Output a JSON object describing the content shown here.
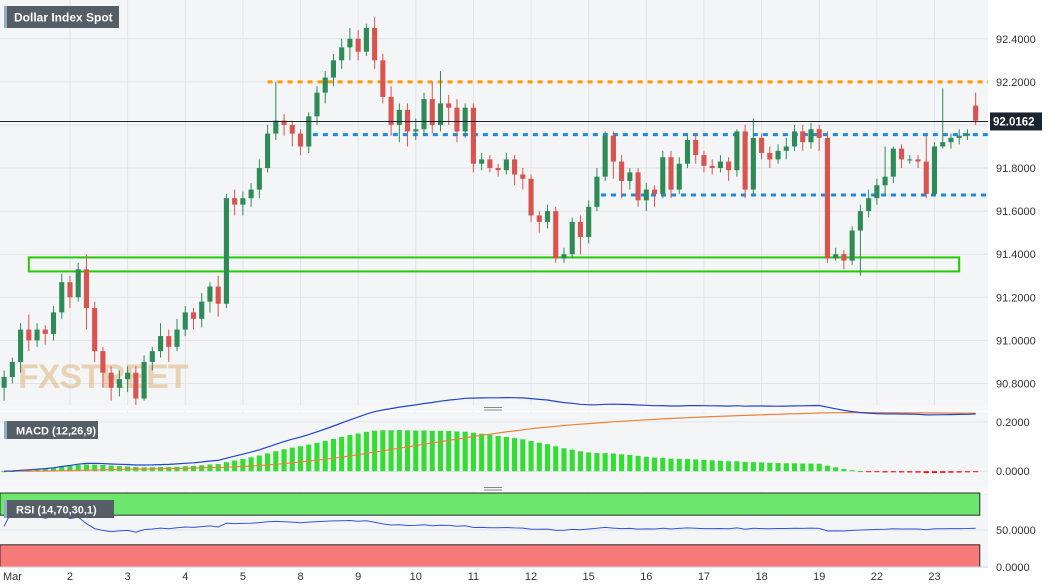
{
  "chart_data": {
    "type": "candlestick",
    "title": "Dollar Index Spot",
    "watermark": "FXSTREET",
    "last_price": {
      "label": "92.0162",
      "value": 92.0162
    },
    "x_axis": {
      "ticks": [
        {
          "label": "Mar",
          "x": 1
        },
        {
          "label": "2",
          "x": 8.5
        },
        {
          "label": "3",
          "x": 15.5
        },
        {
          "label": "4",
          "x": 22.5
        },
        {
          "label": "5",
          "x": 29.5
        },
        {
          "label": "8",
          "x": 36.5
        },
        {
          "label": "9",
          "x": 43.5
        },
        {
          "label": "10",
          "x": 50.5
        },
        {
          "label": "11",
          "x": 57.5
        },
        {
          "label": "12",
          "x": 64.5
        },
        {
          "label": "15",
          "x": 71.5
        },
        {
          "label": "16",
          "x": 78.5
        },
        {
          "label": "17",
          "x": 85.5
        },
        {
          "label": "18",
          "x": 92.5
        },
        {
          "label": "19",
          "x": 99.5
        },
        {
          "label": "22",
          "x": 106.5
        },
        {
          "label": "23",
          "x": 113.5
        }
      ],
      "range": [
        0,
        120
      ]
    },
    "price_axis": {
      "ylim": [
        90.7,
        92.58
      ],
      "ticks": [
        {
          "label": "92.4000",
          "value": 92.4
        },
        {
          "label": "92.2000",
          "value": 92.2
        },
        {
          "label": "92.0000",
          "value": 92.0
        },
        {
          "label": "91.8000",
          "value": 91.8
        },
        {
          "label": "91.6000",
          "value": 91.6
        },
        {
          "label": "91.4000",
          "value": 91.4
        },
        {
          "label": "91.2000",
          "value": 91.2
        },
        {
          "label": "91.0000",
          "value": 91.0
        },
        {
          "label": "90.8000",
          "value": 90.8
        }
      ]
    },
    "candles_up_color": "#2e8b57",
    "candles_down_color": "#d9534f",
    "candles": [
      [
        90.78,
        90.83,
        90.72,
        90.86
      ],
      [
        90.83,
        90.9,
        90.8,
        90.92
      ],
      [
        90.9,
        91.05,
        90.85,
        91.08
      ],
      [
        91.05,
        91.0,
        90.95,
        91.12
      ],
      [
        91.0,
        91.05,
        90.97,
        91.08
      ],
      [
        91.05,
        91.03,
        90.98,
        91.07
      ],
      [
        91.03,
        91.13,
        91.0,
        91.16
      ],
      [
        91.13,
        91.27,
        91.1,
        91.31
      ],
      [
        91.27,
        91.2,
        91.15,
        91.3
      ],
      [
        91.2,
        91.33,
        91.18,
        91.36
      ],
      [
        91.33,
        91.15,
        91.05,
        91.4
      ],
      [
        91.15,
        90.95,
        90.9,
        91.18
      ],
      [
        90.95,
        90.85,
        90.78,
        90.97
      ],
      [
        90.85,
        90.78,
        90.72,
        90.88
      ],
      [
        90.78,
        90.82,
        90.74,
        90.86
      ],
      [
        90.82,
        90.85,
        90.76,
        90.88
      ],
      [
        90.85,
        90.73,
        90.7,
        90.88
      ],
      [
        90.73,
        90.9,
        90.72,
        90.93
      ],
      [
        90.9,
        90.95,
        90.86,
        90.97
      ],
      [
        90.95,
        91.02,
        90.92,
        91.08
      ],
      [
        91.02,
        90.97,
        90.9,
        91.05
      ],
      [
        90.97,
        91.05,
        90.95,
        91.1
      ],
      [
        91.05,
        91.13,
        91.02,
        91.16
      ],
      [
        91.13,
        91.1,
        91.05,
        91.15
      ],
      [
        91.1,
        91.18,
        91.06,
        91.22
      ],
      [
        91.18,
        91.25,
        91.13,
        91.27
      ],
      [
        91.25,
        91.17,
        91.11,
        91.3
      ],
      [
        91.17,
        91.66,
        91.15,
        91.68
      ],
      [
        91.66,
        91.63,
        91.58,
        91.7
      ],
      [
        91.63,
        91.66,
        91.58,
        91.69
      ],
      [
        91.66,
        91.7,
        91.62,
        91.73
      ],
      [
        91.7,
        91.8,
        91.66,
        91.84
      ],
      [
        91.8,
        91.96,
        91.78,
        92.0
      ],
      [
        91.96,
        92.02,
        91.93,
        92.2
      ],
      [
        92.02,
        92.0,
        91.95,
        92.05
      ],
      [
        92.0,
        91.96,
        91.9,
        92.02
      ],
      [
        91.96,
        91.9,
        91.86,
        91.98
      ],
      [
        91.9,
        92.04,
        91.87,
        92.06
      ],
      [
        92.04,
        92.15,
        92.0,
        92.18
      ],
      [
        92.15,
        92.22,
        92.1,
        92.25
      ],
      [
        92.22,
        92.3,
        92.18,
        92.33
      ],
      [
        92.3,
        92.36,
        92.26,
        92.4
      ],
      [
        92.36,
        92.4,
        92.3,
        92.45
      ],
      [
        92.4,
        92.34,
        92.3,
        92.44
      ],
      [
        92.34,
        92.45,
        92.32,
        92.47
      ],
      [
        92.45,
        92.3,
        92.26,
        92.5
      ],
      [
        92.3,
        92.13,
        92.1,
        92.33
      ],
      [
        92.13,
        92.0,
        91.95,
        92.18
      ],
      [
        92.0,
        92.07,
        91.92,
        92.1
      ],
      [
        92.07,
        91.97,
        91.9,
        92.1
      ],
      [
        91.97,
        91.98,
        91.93,
        92.03
      ],
      [
        91.98,
        92.12,
        91.95,
        92.15
      ],
      [
        92.12,
        92.0,
        91.96,
        92.2
      ],
      [
        92.0,
        92.1,
        91.97,
        92.25
      ],
      [
        92.1,
        92.08,
        92.0,
        92.14
      ],
      [
        92.08,
        91.97,
        91.92,
        92.12
      ],
      [
        91.97,
        92.08,
        91.94,
        92.1
      ],
      [
        92.08,
        91.82,
        91.78,
        92.1
      ],
      [
        91.82,
        91.84,
        91.79,
        91.87
      ],
      [
        91.84,
        91.8,
        91.78,
        91.86
      ],
      [
        91.8,
        91.79,
        91.76,
        91.82
      ],
      [
        91.79,
        91.84,
        91.77,
        91.87
      ],
      [
        91.84,
        91.77,
        91.72,
        91.86
      ],
      [
        91.77,
        91.75,
        91.7,
        91.8
      ],
      [
        91.75,
        91.58,
        91.55,
        91.77
      ],
      [
        91.58,
        91.55,
        91.5,
        91.6
      ],
      [
        91.55,
        91.6,
        91.52,
        91.63
      ],
      [
        91.6,
        91.38,
        91.36,
        91.62
      ],
      [
        91.38,
        91.4,
        91.36,
        91.43
      ],
      [
        91.4,
        91.55,
        91.38,
        91.57
      ],
      [
        91.55,
        91.48,
        91.4,
        91.58
      ],
      [
        91.48,
        91.62,
        91.45,
        91.65
      ],
      [
        91.62,
        91.76,
        91.6,
        91.8
      ],
      [
        91.76,
        91.95,
        91.74,
        91.97
      ],
      [
        91.95,
        91.83,
        91.75,
        91.97
      ],
      [
        91.83,
        91.74,
        91.66,
        91.86
      ],
      [
        91.74,
        91.78,
        91.7,
        91.8
      ],
      [
        91.78,
        91.65,
        91.62,
        91.8
      ],
      [
        91.65,
        91.7,
        91.6,
        91.73
      ],
      [
        91.7,
        91.68,
        91.62,
        91.72
      ],
      [
        91.68,
        91.85,
        91.66,
        91.88
      ],
      [
        91.85,
        91.7,
        91.66,
        91.88
      ],
      [
        91.7,
        91.82,
        91.68,
        91.85
      ],
      [
        91.82,
        91.93,
        91.8,
        91.96
      ],
      [
        91.93,
        91.86,
        91.82,
        91.96
      ],
      [
        91.86,
        91.81,
        91.78,
        91.88
      ],
      [
        91.81,
        91.8,
        91.77,
        91.84
      ],
      [
        91.8,
        91.83,
        91.78,
        91.86
      ],
      [
        91.83,
        91.79,
        91.74,
        91.85
      ],
      [
        91.79,
        91.97,
        91.76,
        91.98
      ],
      [
        91.97,
        91.7,
        91.66,
        92.0
      ],
      [
        91.7,
        91.94,
        91.68,
        92.03
      ],
      [
        91.94,
        91.87,
        91.84,
        91.96
      ],
      [
        91.87,
        91.84,
        91.8,
        91.9
      ],
      [
        91.84,
        91.88,
        91.82,
        91.91
      ],
      [
        91.88,
        91.9,
        91.84,
        91.94
      ],
      [
        91.9,
        91.97,
        91.88,
        92.0
      ],
      [
        91.97,
        91.92,
        91.88,
        92.0
      ],
      [
        91.92,
        91.98,
        91.89,
        92.01
      ],
      [
        91.98,
        91.94,
        91.88,
        92.0
      ],
      [
        91.94,
        91.38,
        91.36,
        91.97
      ],
      [
        91.38,
        91.4,
        91.37,
        91.43
      ],
      [
        91.4,
        91.37,
        91.33,
        91.42
      ],
      [
        91.37,
        91.51,
        91.35,
        91.53
      ],
      [
        91.51,
        91.6,
        91.3,
        91.63
      ],
      [
        91.6,
        91.66,
        91.57,
        91.7
      ],
      [
        91.66,
        91.72,
        91.63,
        91.75
      ],
      [
        91.72,
        91.76,
        91.68,
        91.9
      ],
      [
        91.76,
        91.89,
        91.73,
        91.9
      ],
      [
        91.89,
        91.84,
        91.8,
        91.91
      ],
      [
        91.84,
        91.84,
        91.82,
        91.86
      ],
      [
        91.84,
        91.83,
        91.8,
        91.86
      ],
      [
        91.83,
        91.68,
        91.66,
        91.95
      ],
      [
        91.68,
        91.9,
        91.67,
        91.92
      ],
      [
        91.9,
        91.92,
        91.89,
        92.17
      ],
      [
        91.92,
        91.94,
        91.89,
        91.96
      ],
      [
        91.94,
        91.95,
        91.91,
        91.98
      ],
      [
        91.95,
        91.96,
        91.93,
        91.98
      ],
      [
        92.09,
        92.02,
        92.0,
        92.15
      ]
    ],
    "levels": [
      {
        "name": "resistance",
        "value": 92.2,
        "color": "#ff9900",
        "x_from": 32.5,
        "x_to": 120
      },
      {
        "name": "mid-resistance",
        "value": 91.955,
        "color": "#1e88e5",
        "x_from": 38,
        "x_to": 120
      },
      {
        "name": "support",
        "value": 91.675,
        "color": "#1e88e5",
        "x_from": 73,
        "x_to": 120
      }
    ],
    "support_zone": {
      "y_low": 91.32,
      "y_high": 91.385,
      "x_from": 3.5,
      "x_to": 116.5,
      "color": "#22cc00"
    },
    "macd": {
      "label": "MACD (12,26,9)",
      "ylim": [
        -0.06,
        0.24
      ],
      "ticks": [
        {
          "label": "0.2000",
          "value": 0.2
        },
        {
          "label": "0.0000",
          "value": 0.0
        }
      ],
      "line_color": "#2244cc",
      "signal_color": "#e8833a",
      "hist_pos_color": "#33dd33",
      "hist_neg_color": "#ee1111"
    },
    "rsi": {
      "label": "RSI (14,70,30,1)",
      "ylim": [
        0,
        100
      ],
      "ticks": [
        {
          "label": "50.0000",
          "value": 50
        },
        {
          "label": "0.0000",
          "value": 0
        }
      ],
      "overbought": 70,
      "oversold": 30,
      "overbought_color": "#6ce66c",
      "oversold_color": "#f77a7a",
      "line_color": "#3355dd"
    }
  }
}
